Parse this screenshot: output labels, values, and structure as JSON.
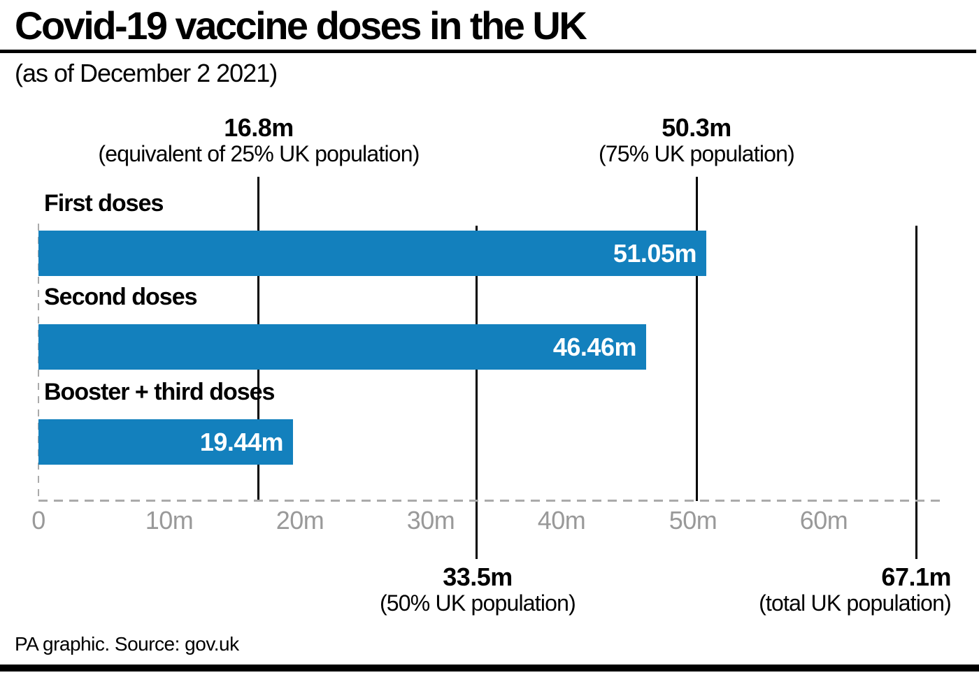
{
  "header": {
    "title": "Covid-19 vaccine doses in the UK",
    "subtitle": "(as of December 2 2021)"
  },
  "footer": {
    "credit": "PA graphic. Source: gov.uk"
  },
  "colors": {
    "bar_blue": "#1380BD",
    "tick_gray": "#999999",
    "dash_gray": "#AAAAAA",
    "line_black": "#000000",
    "background": "#FFFFFF"
  },
  "chart_data": {
    "type": "bar",
    "orientation": "horizontal",
    "categories": [
      "First doses",
      "Second doses",
      "Booster + third doses"
    ],
    "values": [
      51.05,
      46.46,
      19.44
    ],
    "value_labels": [
      "51.05m",
      "46.46m",
      "19.44m"
    ],
    "x_ticks": [
      "0",
      "10m",
      "20m",
      "30m",
      "40m",
      "50m",
      "60m"
    ],
    "x_tick_values": [
      0,
      10,
      20,
      30,
      40,
      50,
      60
    ],
    "xlim": [
      0,
      69
    ],
    "grid": "off",
    "legend": "none",
    "reference_lines": [
      {
        "value": 16.8,
        "label": "16.8m",
        "sublabel": "(equivalent of 25% UK population)",
        "position": "top"
      },
      {
        "value": 50.3,
        "label": "50.3m",
        "sublabel": "(75% UK population)",
        "position": "top"
      },
      {
        "value": 33.5,
        "label": "33.5m",
        "sublabel": "(50% UK population)",
        "position": "bottom"
      },
      {
        "value": 67.1,
        "label": "67.1m",
        "sublabel": "(total UK population)",
        "position": "bottom"
      }
    ]
  }
}
